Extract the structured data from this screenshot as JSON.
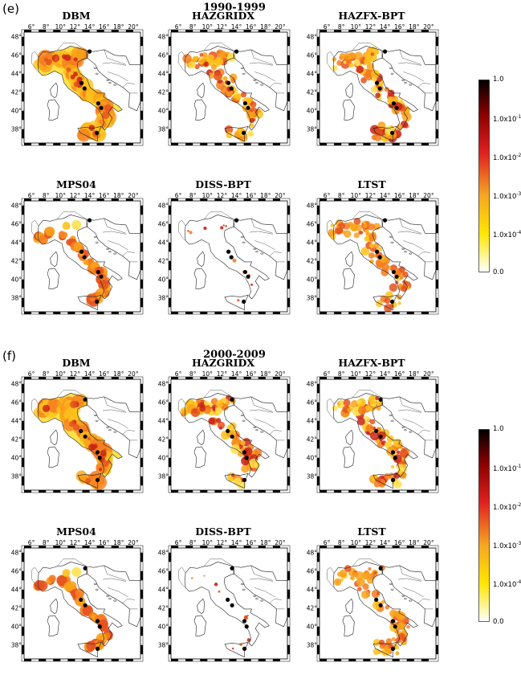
{
  "figure": {
    "sections": [
      {
        "letter": "(e)",
        "title": "1990-1999",
        "maps": [
          "DBM",
          "HAZGRIDX",
          "HAZFX-BPT",
          "MPS04",
          "DISS-BPT",
          "LTST"
        ],
        "colorbar": [
          "1.0",
          "1.0x10",
          "1.0x10",
          "1.0x10",
          "1.0x10",
          "0.0"
        ],
        "exponents": [
          "",
          "-1",
          "-2",
          "-3",
          "-4",
          ""
        ]
      },
      {
        "letter": "(f)",
        "title": "2000-2009",
        "maps": [
          "DBM",
          "HAZGRIDX",
          "HAZFX-BPT",
          "MPS04",
          "DISS-BPT",
          "LTST"
        ],
        "colorbar": [
          "1.0",
          "1.0x10",
          "1.0x10",
          "1.0x10",
          "1.0x10",
          "0.0"
        ],
        "exponents": [
          "",
          "-1",
          "-2",
          "-3",
          "-4",
          ""
        ]
      }
    ],
    "lon_ticks": [
      "6°",
      "8°",
      "10°",
      "12°",
      "14°",
      "16°",
      "18°",
      "20°"
    ],
    "lat_ticks": [
      "48°",
      "46°",
      "44°",
      "42°",
      "40°",
      "38°"
    ],
    "colors": {
      "high": "#000000",
      "mid_high": "#8b0000",
      "mid": "#e02020",
      "mid_low": "#f5a623",
      "low": "#ffe600",
      "zero": "#ffffff"
    }
  }
}
